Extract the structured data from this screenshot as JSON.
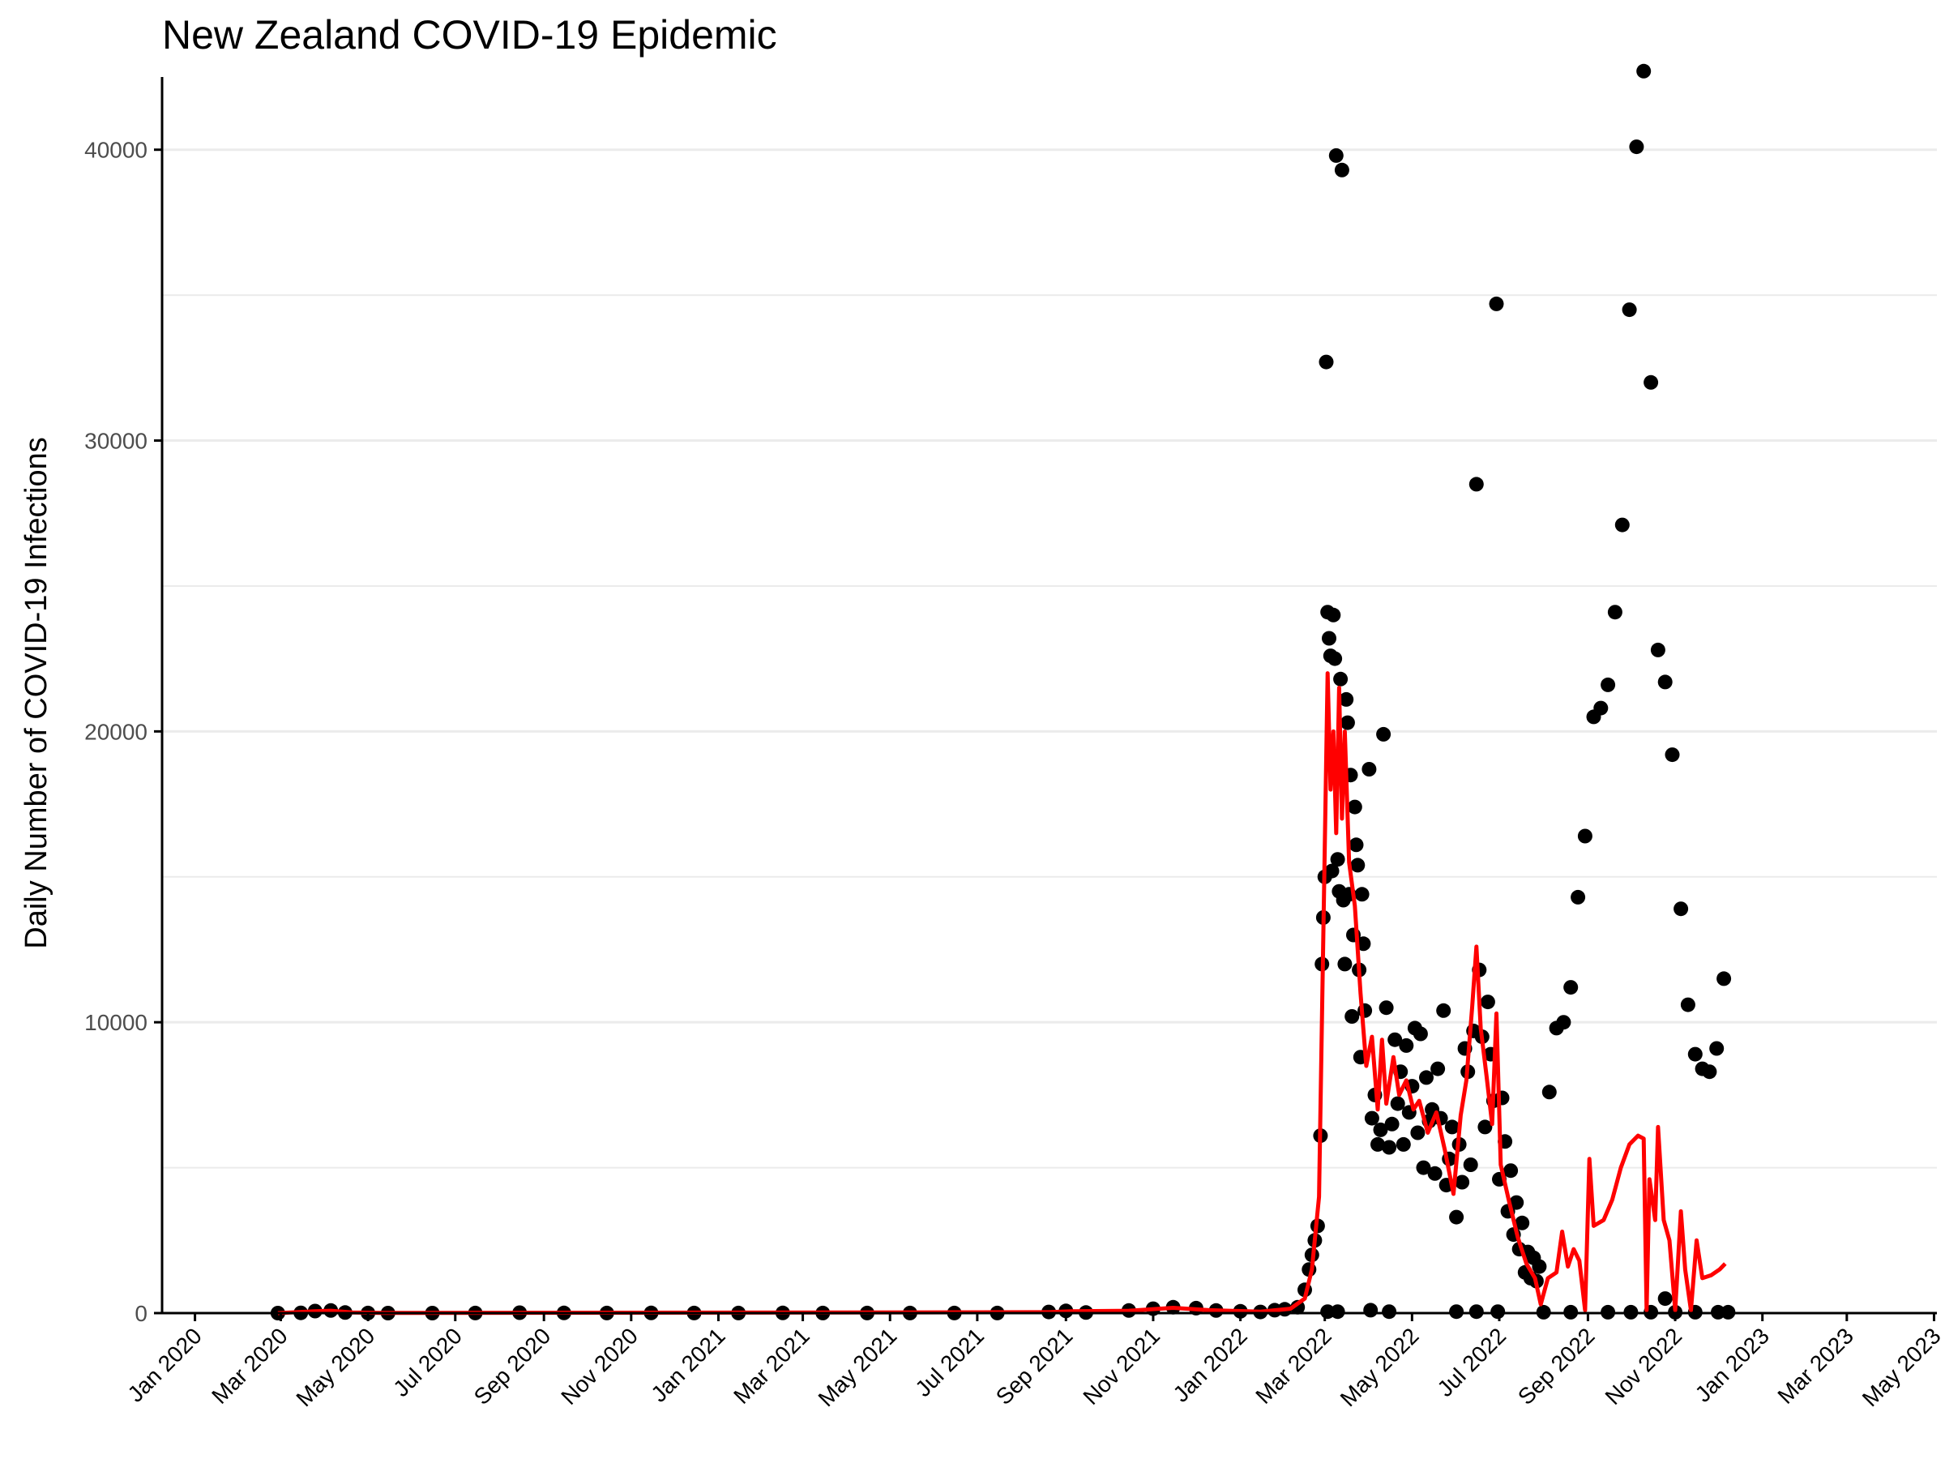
{
  "chart_data": {
    "type": "scatter",
    "title": "New Zealand COVID-19 Epidemic",
    "xlabel": "",
    "ylabel": "Daily Number of COVID-19 Infections",
    "xlim": [
      "2019-12-09",
      "2023-05-03"
    ],
    "ylim": [
      0,
      42500
    ],
    "y_ticks": [
      0,
      10000,
      20000,
      30000,
      40000
    ],
    "y_minor_ticks": [
      5000,
      15000,
      25000,
      35000
    ],
    "x_ticks": [
      {
        "date": "2020-01-01",
        "label": "Jan 2020"
      },
      {
        "date": "2020-03-01",
        "label": "Mar 2020"
      },
      {
        "date": "2020-05-01",
        "label": "May 2020"
      },
      {
        "date": "2020-07-01",
        "label": "Jul 2020"
      },
      {
        "date": "2020-09-01",
        "label": "Sep 2020"
      },
      {
        "date": "2020-11-01",
        "label": "Nov 2020"
      },
      {
        "date": "2021-01-01",
        "label": "Jan 2021"
      },
      {
        "date": "2021-03-01",
        "label": "Mar 2021"
      },
      {
        "date": "2021-05-01",
        "label": "May 2021"
      },
      {
        "date": "2021-07-01",
        "label": "Jul 2021"
      },
      {
        "date": "2021-09-01",
        "label": "Sep 2021"
      },
      {
        "date": "2021-11-01",
        "label": "Nov 2021"
      },
      {
        "date": "2022-01-01",
        "label": "Jan 2022"
      },
      {
        "date": "2022-03-01",
        "label": "Mar 2022"
      },
      {
        "date": "2022-05-01",
        "label": "May 2022"
      },
      {
        "date": "2022-07-01",
        "label": "Jul 2022"
      },
      {
        "date": "2022-09-01",
        "label": "Sep 2022"
      },
      {
        "date": "2022-11-01",
        "label": "Nov 2022"
      },
      {
        "date": "2023-01-01",
        "label": "Jan 2023"
      },
      {
        "date": "2023-03-01",
        "label": "Mar 2023"
      },
      {
        "date": "2023-05-01",
        "label": "May 2023"
      }
    ],
    "grid": "horizontal",
    "colors": {
      "points": "#000000",
      "line": "#ff0000",
      "grid": "#ebebeb",
      "axis": "#000000"
    },
    "series": [
      {
        "type": "points",
        "points": [
          [
            "2020-02-28",
            1
          ],
          [
            "2020-03-15",
            8
          ],
          [
            "2020-03-25",
            70
          ],
          [
            "2020-04-05",
            89
          ],
          [
            "2020-04-15",
            20
          ],
          [
            "2020-05-01",
            3
          ],
          [
            "2020-05-15",
            0
          ],
          [
            "2020-06-15",
            1
          ],
          [
            "2020-07-15",
            2
          ],
          [
            "2020-08-15",
            13
          ],
          [
            "2020-09-15",
            5
          ],
          [
            "2020-10-15",
            4
          ],
          [
            "2020-11-15",
            6
          ],
          [
            "2020-12-15",
            2
          ],
          [
            "2021-01-15",
            3
          ],
          [
            "2021-02-15",
            5
          ],
          [
            "2021-03-15",
            4
          ],
          [
            "2021-04-15",
            3
          ],
          [
            "2021-05-15",
            2
          ],
          [
            "2021-06-15",
            4
          ],
          [
            "2021-07-15",
            3
          ],
          [
            "2021-08-20",
            40
          ],
          [
            "2021-09-01",
            75
          ],
          [
            "2021-09-15",
            20
          ],
          [
            "2021-10-15",
            90
          ],
          [
            "2021-11-01",
            150
          ],
          [
            "2021-11-15",
            200
          ],
          [
            "2021-12-01",
            170
          ],
          [
            "2021-12-15",
            90
          ],
          [
            "2022-01-01",
            60
          ],
          [
            "2022-01-15",
            40
          ],
          [
            "2022-01-25",
            100
          ],
          [
            "2022-02-01",
            130
          ],
          [
            "2022-02-10",
            200
          ],
          [
            "2022-02-15",
            800
          ],
          [
            "2022-02-18",
            1500
          ],
          [
            "2022-02-20",
            2000
          ],
          [
            "2022-02-22",
            2500
          ],
          [
            "2022-02-24",
            3000
          ],
          [
            "2022-02-26",
            6100
          ],
          [
            "2022-02-27",
            12000
          ],
          [
            "2022-02-28",
            13600
          ],
          [
            "2022-03-01",
            15000
          ],
          [
            "2022-03-02",
            32700
          ],
          [
            "2022-03-03",
            24100
          ],
          [
            "2022-03-04",
            23200
          ],
          [
            "2022-03-05",
            22600
          ],
          [
            "2022-03-06",
            15200
          ],
          [
            "2022-03-07",
            24000
          ],
          [
            "2022-03-08",
            22500
          ],
          [
            "2022-03-09",
            39800
          ],
          [
            "2022-03-10",
            15600
          ],
          [
            "2022-03-11",
            14500
          ],
          [
            "2022-03-12",
            21800
          ],
          [
            "2022-03-13",
            39300
          ],
          [
            "2022-03-14",
            14200
          ],
          [
            "2022-03-15",
            12000
          ],
          [
            "2022-03-16",
            21100
          ],
          [
            "2022-03-17",
            20300
          ],
          [
            "2022-03-18",
            14400
          ],
          [
            "2022-03-19",
            18500
          ],
          [
            "2022-03-20",
            10200
          ],
          [
            "2022-03-21",
            13000
          ],
          [
            "2022-03-22",
            17400
          ],
          [
            "2022-03-23",
            16100
          ],
          [
            "2022-03-24",
            15400
          ],
          [
            "2022-03-25",
            11800
          ],
          [
            "2022-03-26",
            8800
          ],
          [
            "2022-03-27",
            14400
          ],
          [
            "2022-03-28",
            12700
          ],
          [
            "2022-03-29",
            10400
          ],
          [
            "2022-04-01",
            18700
          ],
          [
            "2022-04-03",
            6700
          ],
          [
            "2022-04-05",
            7500
          ],
          [
            "2022-04-07",
            5800
          ],
          [
            "2022-04-09",
            6300
          ],
          [
            "2022-04-11",
            19900
          ],
          [
            "2022-04-13",
            10500
          ],
          [
            "2022-04-15",
            5700
          ],
          [
            "2022-04-17",
            6500
          ],
          [
            "2022-04-19",
            9400
          ],
          [
            "2022-04-21",
            7200
          ],
          [
            "2022-04-23",
            8300
          ],
          [
            "2022-04-25",
            5800
          ],
          [
            "2022-04-27",
            9200
          ],
          [
            "2022-04-29",
            6900
          ],
          [
            "2022-05-01",
            7800
          ],
          [
            "2022-05-03",
            9800
          ],
          [
            "2022-05-05",
            6200
          ],
          [
            "2022-05-07",
            9600
          ],
          [
            "2022-05-09",
            5000
          ],
          [
            "2022-05-11",
            8100
          ],
          [
            "2022-05-13",
            6600
          ],
          [
            "2022-05-15",
            7000
          ],
          [
            "2022-05-17",
            4800
          ],
          [
            "2022-05-19",
            8400
          ],
          [
            "2022-05-21",
            6700
          ],
          [
            "2022-05-23",
            10400
          ],
          [
            "2022-05-25",
            4400
          ],
          [
            "2022-05-27",
            5300
          ],
          [
            "2022-05-29",
            6400
          ],
          [
            "2022-06-01",
            3300
          ],
          [
            "2022-06-03",
            5800
          ],
          [
            "2022-06-05",
            4500
          ],
          [
            "2022-06-07",
            9100
          ],
          [
            "2022-06-09",
            8300
          ],
          [
            "2022-06-11",
            5100
          ],
          [
            "2022-06-13",
            9700
          ],
          [
            "2022-06-15",
            28500
          ],
          [
            "2022-06-17",
            11800
          ],
          [
            "2022-06-19",
            9500
          ],
          [
            "2022-06-21",
            6400
          ],
          [
            "2022-06-23",
            10700
          ],
          [
            "2022-06-25",
            8900
          ],
          [
            "2022-06-27",
            7300
          ],
          [
            "2022-06-29",
            34700
          ],
          [
            "2022-07-01",
            4600
          ],
          [
            "2022-07-03",
            7400
          ],
          [
            "2022-07-05",
            5900
          ],
          [
            "2022-07-07",
            3500
          ],
          [
            "2022-07-09",
            4900
          ],
          [
            "2022-07-11",
            2700
          ],
          [
            "2022-07-13",
            3800
          ],
          [
            "2022-07-15",
            2200
          ],
          [
            "2022-07-17",
            3100
          ],
          [
            "2022-07-19",
            1400
          ],
          [
            "2022-07-21",
            2100
          ],
          [
            "2022-07-23",
            1200
          ],
          [
            "2022-07-25",
            1900
          ],
          [
            "2022-07-27",
            1100
          ],
          [
            "2022-07-29",
            1600
          ],
          [
            "2022-08-05",
            7600
          ],
          [
            "2022-08-10",
            9800
          ],
          [
            "2022-08-15",
            10000
          ],
          [
            "2022-08-20",
            11200
          ],
          [
            "2022-08-25",
            14300
          ],
          [
            "2022-08-30",
            16400
          ],
          [
            "2022-09-05",
            20500
          ],
          [
            "2022-09-10",
            20800
          ],
          [
            "2022-09-15",
            21600
          ],
          [
            "2022-09-20",
            24100
          ],
          [
            "2022-09-25",
            27100
          ],
          [
            "2022-09-30",
            34500
          ],
          [
            "2022-10-05",
            40100
          ],
          [
            "2022-10-10",
            42700
          ],
          [
            "2022-10-15",
            32000
          ],
          [
            "2022-10-20",
            22800
          ],
          [
            "2022-10-25",
            21700
          ],
          [
            "2022-10-30",
            19200
          ],
          [
            "2022-11-05",
            13900
          ],
          [
            "2022-11-10",
            10600
          ],
          [
            "2022-11-15",
            8900
          ],
          [
            "2022-11-20",
            8400
          ],
          [
            "2022-11-25",
            8300
          ],
          [
            "2022-11-30",
            9100
          ],
          [
            "2022-12-05",
            11500
          ],
          [
            "2022-10-25",
            500
          ],
          [
            "2022-03-03",
            50
          ],
          [
            "2022-03-10",
            50
          ],
          [
            "2022-04-02",
            100
          ],
          [
            "2022-04-15",
            50
          ],
          [
            "2022-06-01",
            50
          ],
          [
            "2022-06-15",
            50
          ],
          [
            "2022-06-30",
            50
          ],
          [
            "2022-08-01",
            30
          ],
          [
            "2022-08-20",
            30
          ],
          [
            "2022-09-15",
            30
          ],
          [
            "2022-10-01",
            30
          ],
          [
            "2022-10-15",
            30
          ],
          [
            "2022-11-01",
            30
          ],
          [
            "2022-11-15",
            30
          ],
          [
            "2022-12-01",
            30
          ],
          [
            "2022-12-08",
            30
          ]
        ]
      },
      {
        "type": "line",
        "points": [
          [
            "2020-02-28",
            0
          ],
          [
            "2020-03-25",
            60
          ],
          [
            "2020-04-05",
            80
          ],
          [
            "2020-04-20",
            20
          ],
          [
            "2020-05-10",
            5
          ],
          [
            "2021-08-20",
            30
          ],
          [
            "2021-09-05",
            60
          ],
          [
            "2021-10-15",
            80
          ],
          [
            "2021-11-15",
            180
          ],
          [
            "2021-12-10",
            100
          ],
          [
            "2022-01-15",
            50
          ],
          [
            "2022-02-05",
            150
          ],
          [
            "2022-02-15",
            500
          ],
          [
            "2022-02-20",
            1500
          ],
          [
            "2022-02-25",
            4000
          ],
          [
            "2022-02-28",
            13000
          ],
          [
            "2022-03-03",
            22000
          ],
          [
            "2022-03-05",
            18000
          ],
          [
            "2022-03-07",
            20000
          ],
          [
            "2022-03-09",
            16500
          ],
          [
            "2022-03-11",
            21500
          ],
          [
            "2022-03-13",
            17000
          ],
          [
            "2022-03-15",
            20000
          ],
          [
            "2022-03-18",
            15500
          ],
          [
            "2022-03-22",
            14000
          ],
          [
            "2022-03-26",
            11000
          ],
          [
            "2022-03-30",
            8500
          ],
          [
            "2022-04-03",
            9500
          ],
          [
            "2022-04-07",
            7000
          ],
          [
            "2022-04-10",
            9400
          ],
          [
            "2022-04-13",
            7200
          ],
          [
            "2022-04-18",
            8800
          ],
          [
            "2022-04-22",
            7500
          ],
          [
            "2022-04-27",
            8000
          ],
          [
            "2022-05-02",
            7000
          ],
          [
            "2022-05-06",
            7300
          ],
          [
            "2022-05-12",
            6200
          ],
          [
            "2022-05-18",
            6900
          ],
          [
            "2022-05-24",
            5600
          ],
          [
            "2022-05-30",
            4100
          ],
          [
            "2022-06-04",
            6800
          ],
          [
            "2022-06-08",
            8000
          ],
          [
            "2022-06-12",
            10500
          ],
          [
            "2022-06-15",
            12600
          ],
          [
            "2022-06-18",
            9800
          ],
          [
            "2022-06-22",
            8200
          ],
          [
            "2022-06-26",
            6500
          ],
          [
            "2022-06-29",
            10300
          ],
          [
            "2022-07-02",
            5100
          ],
          [
            "2022-07-08",
            3800
          ],
          [
            "2022-07-14",
            2600
          ],
          [
            "2022-07-20",
            1700
          ],
          [
            "2022-07-26",
            1200
          ],
          [
            "2022-07-30",
            300
          ],
          [
            "2022-08-04",
            1200
          ],
          [
            "2022-08-10",
            1400
          ],
          [
            "2022-08-14",
            2800
          ],
          [
            "2022-08-18",
            1600
          ],
          [
            "2022-08-22",
            2200
          ],
          [
            "2022-08-26",
            1800
          ],
          [
            "2022-08-30",
            100
          ],
          [
            "2022-09-02",
            5300
          ],
          [
            "2022-09-05",
            3000
          ],
          [
            "2022-09-12",
            3200
          ],
          [
            "2022-09-18",
            3900
          ],
          [
            "2022-09-24",
            5000
          ],
          [
            "2022-09-30",
            5800
          ],
          [
            "2022-10-06",
            6100
          ],
          [
            "2022-10-10",
            6000
          ],
          [
            "2022-10-12",
            100
          ],
          [
            "2022-10-14",
            4600
          ],
          [
            "2022-10-18",
            3200
          ],
          [
            "2022-10-20",
            6400
          ],
          [
            "2022-10-24",
            3200
          ],
          [
            "2022-10-28",
            2500
          ],
          [
            "2022-11-01",
            100
          ],
          [
            "2022-11-05",
            3500
          ],
          [
            "2022-11-08",
            1500
          ],
          [
            "2022-11-12",
            100
          ],
          [
            "2022-11-16",
            2500
          ],
          [
            "2022-11-20",
            1200
          ],
          [
            "2022-11-26",
            1300
          ],
          [
            "2022-12-02",
            1500
          ],
          [
            "2022-12-06",
            1700
          ]
        ]
      }
    ]
  }
}
